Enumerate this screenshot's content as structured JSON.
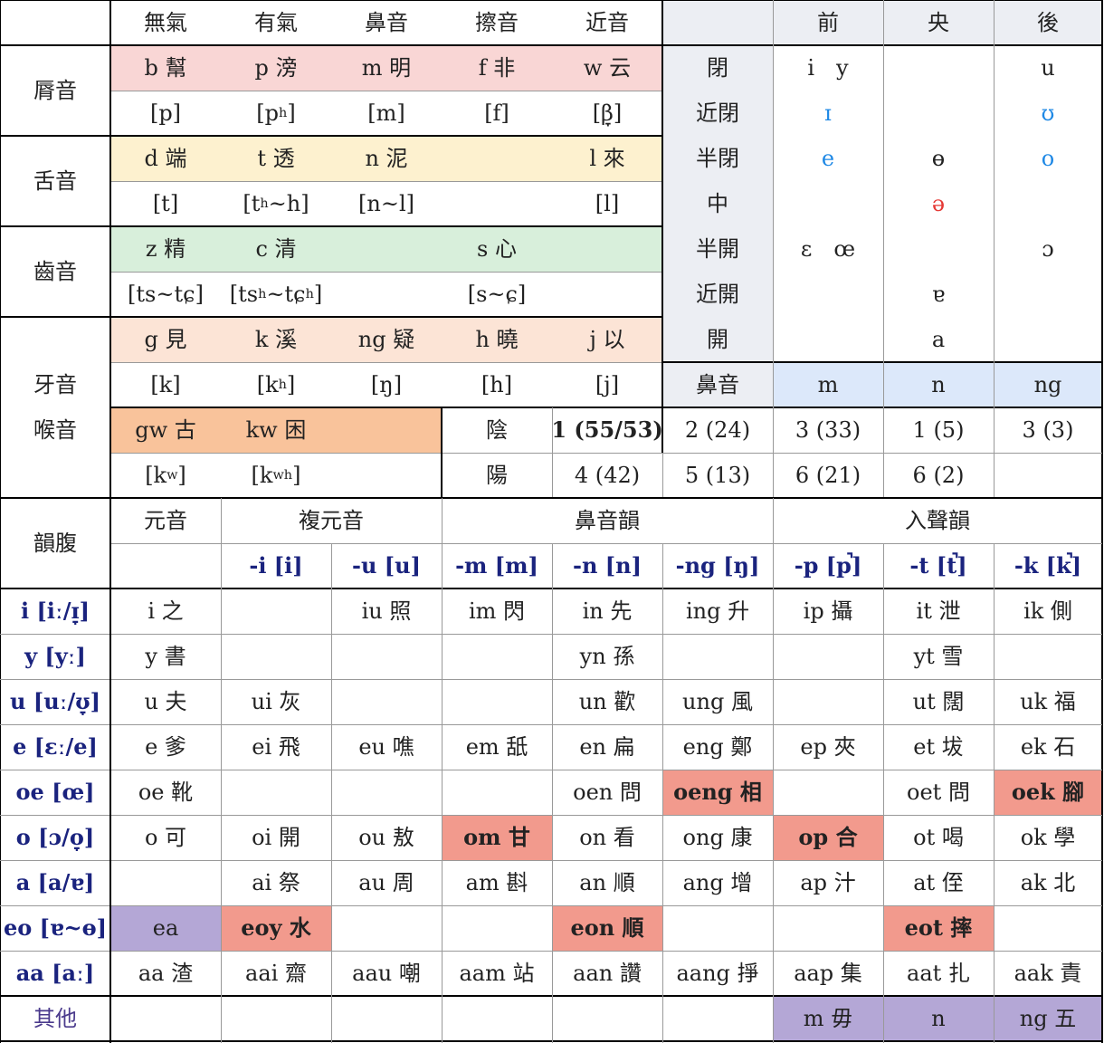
{
  "header": {
    "manners": [
      "無氣",
      "有氣",
      "鼻音",
      "擦音",
      "近音"
    ],
    "backness": [
      "前",
      "央",
      "後"
    ]
  },
  "consonants": {
    "labial": {
      "label": "脣音",
      "rom": [
        "b 幫",
        "p 滂",
        "m 明",
        "f 非",
        "w 云"
      ],
      "ipa": [
        "[p]",
        "[pʰ]",
        "[m]",
        "[f]",
        "[β̞]"
      ]
    },
    "coronal": {
      "label": "舌音",
      "rom": [
        "d 端",
        "t 透",
        "n 泥",
        "",
        "l 來"
      ],
      "ipa": [
        "[t]",
        "[tʰ~h]",
        "[n~l]",
        "",
        "[l]"
      ]
    },
    "dental": {
      "label": "齒音",
      "rom": [
        "z 精",
        "c 清",
        "",
        "s 心",
        ""
      ],
      "ipa": [
        "[ts~tɕ]",
        "[tsʰ~tɕʰ]",
        "",
        "[s~ɕ]",
        ""
      ]
    },
    "velar": {
      "label": "牙音",
      "label2": "喉音",
      "rom": [
        "g 見",
        "k 溪",
        "ng 疑",
        "h 曉",
        "j 以"
      ],
      "ipa": [
        "[k]",
        "[kʰ]",
        "[ŋ]",
        "[h]",
        "[j]"
      ],
      "rom_w": [
        "gw 古",
        "kw 困"
      ],
      "ipa_w": [
        "[kʷ]",
        "[kʷʰ]"
      ]
    }
  },
  "vowel_chart": {
    "heights": [
      "閉",
      "近閉",
      "半閉",
      "中",
      "半開",
      "近開",
      "開"
    ],
    "front": [
      "i　y",
      "ɪ",
      "e",
      "",
      "ɛ　œ",
      "",
      ""
    ],
    "central": [
      "",
      "",
      "ɵ",
      "ə",
      "",
      "ɐ",
      "a"
    ],
    "back": [
      "u",
      "ʊ",
      "o",
      "",
      "ɔ",
      "",
      ""
    ],
    "nasal_label": "鼻音",
    "nasals": [
      "m",
      "n",
      "ng"
    ]
  },
  "tones": {
    "yin_label": "陰",
    "yang_label": "陽",
    "yin": [
      "1 (55/53)",
      "2 (24)",
      "3 (33)",
      "1 (5)",
      "3 (3)"
    ],
    "yang": [
      "4 (42)",
      "5 (13)",
      "6 (21)",
      "6 (2)",
      ""
    ]
  },
  "finals": {
    "row_header": "韻腹",
    "groups": [
      "元音",
      "複元音",
      "鼻音韻",
      "入聲韻"
    ],
    "codas": [
      "-i [i]",
      "-u [u]",
      "-m [m]",
      "-n [n]",
      "-ng [ŋ]",
      "-p [p̚]",
      "-t [t̚]",
      "-k [k̚]"
    ],
    "rows": [
      {
        "nucleus": "i [iː/ɪ̞]",
        "cells": [
          "i 之",
          "",
          "iu 照",
          "im 閃",
          "in 先",
          "ing 升",
          "ip 攝",
          "it 泄",
          "ik 側"
        ]
      },
      {
        "nucleus": "y [yː]",
        "cells": [
          "y 書",
          "",
          "",
          "",
          "yn 孫",
          "",
          "",
          "yt 雪",
          ""
        ]
      },
      {
        "nucleus": "u [uː/ʊ̞]",
        "cells": [
          "u 夫",
          "ui 灰",
          "",
          "",
          "un 歡",
          "ung 風",
          "",
          "ut 闊",
          "uk 福"
        ]
      },
      {
        "nucleus": "e [ɛː/e]",
        "cells": [
          "e 爹",
          "ei 飛",
          "eu 噍",
          "em 舐",
          "en 扁",
          "eng 鄭",
          "ep 夾",
          "et 坺",
          "ek 石"
        ]
      },
      {
        "nucleus": "oe [œ]",
        "cells": [
          "oe 靴",
          "",
          "",
          "",
          "oen 問",
          "oeng 相",
          "",
          "oet 問",
          "oek 腳"
        ]
      },
      {
        "nucleus": "o [ɔ/o̞]",
        "cells": [
          "o 可",
          "oi 開",
          "ou 敖",
          "om 甘",
          "on 看",
          "ong 康",
          "op 合",
          "ot 喝",
          "ok 學"
        ]
      },
      {
        "nucleus": "a [a/ɐ]",
        "cells": [
          "",
          "ai 祭",
          "au 周",
          "am 斟",
          "an 順",
          "ang 增",
          "ap 汁",
          "at 侄",
          "ak 北"
        ]
      },
      {
        "nucleus": "eo [ɐ~ɵ]",
        "cells": [
          "ea",
          "eoy 水",
          "",
          "",
          "eon 順",
          "",
          "",
          "eot 摔",
          ""
        ]
      },
      {
        "nucleus": "aa [aː]",
        "cells": [
          "aa 渣",
          "aai 齋",
          "aau 嘲",
          "aam 站",
          "aan 讚",
          "aang 掙",
          "aap 集",
          "aat 扎",
          "aak 責"
        ]
      }
    ],
    "other_label": "其他",
    "other": [
      "",
      "",
      "",
      "",
      "",
      "",
      "m 毋",
      "n",
      "ng 五"
    ]
  },
  "colors": {
    "labial": "#f9d6d5",
    "coronal": "#fdf1cf",
    "dental": "#d8efdb",
    "velar": "#fce4d6",
    "labiovelar": "#f9c39b",
    "vowel_bg": "#eceef3",
    "nasal_bg": "#dce8fa",
    "salmon": "#f29a8d",
    "lavender": "#b4a7d6"
  }
}
